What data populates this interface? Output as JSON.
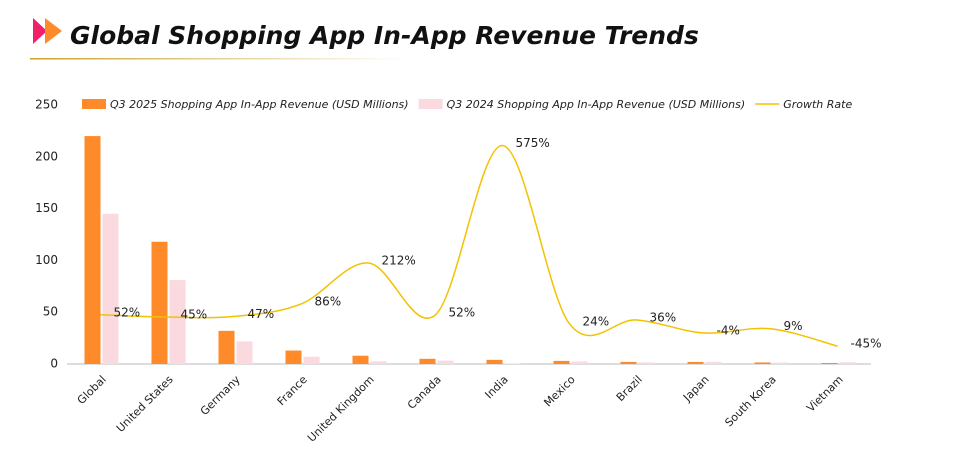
{
  "chart_data": {
    "type": "bar",
    "title": "Global Shopping App In-App Revenue Trends",
    "categories": [
      "Global",
      "United States",
      "Germany",
      "France",
      "United Kingdom",
      "Canada",
      "India",
      "Mexico",
      "Brazil",
      "Japan",
      "South Korea",
      "Vietnam"
    ],
    "series": [
      {
        "name": "Q3 2025 Shopping App In-App Revenue (USD Millions)",
        "color": "#ff8a2a",
        "values": [
          220,
          118,
          32,
          13,
          8,
          5,
          4,
          3,
          2,
          2,
          1.5,
          1
        ]
      },
      {
        "name": "Q3 2024 Shopping App In-App Revenue (USD Millions)",
        "color": "#fadadf",
        "values": [
          145,
          81,
          21.8,
          7,
          2.6,
          3.3,
          0.6,
          2.4,
          1.5,
          2.1,
          1.4,
          1.8
        ]
      },
      {
        "name": "Growth Rate",
        "color": "#f2c200",
        "type": "line",
        "axis": "y2",
        "values": [
          52,
          45,
          47,
          86,
          212,
          52,
          575,
          24,
          36,
          -4,
          9,
          -45
        ],
        "value_labels": [
          "52%",
          "45%",
          "47%",
          "86%",
          "212%",
          "52%",
          "575%",
          "24%",
          "36%",
          "-4%",
          "9%",
          "-45%"
        ]
      }
    ],
    "ylim": [
      0,
      250
    ],
    "yticks": [
      0,
      50,
      100,
      150,
      200,
      250
    ],
    "y2lim": [
      -100,
      700
    ],
    "legend": "top"
  }
}
